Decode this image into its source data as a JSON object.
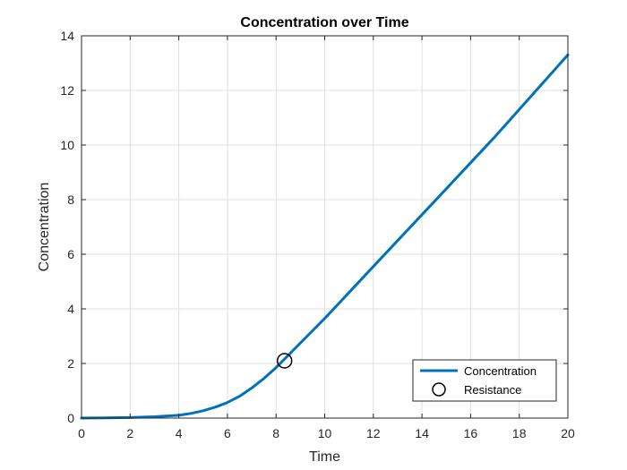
{
  "chart_data": {
    "type": "line",
    "title": "Concentration over Time",
    "xlabel": "Time",
    "ylabel": "Concentration",
    "xlim": [
      0,
      20
    ],
    "ylim": [
      0,
      14
    ],
    "xticks": [
      0,
      2,
      4,
      6,
      8,
      10,
      12,
      14,
      16,
      18,
      20
    ],
    "yticks": [
      0,
      2,
      4,
      6,
      8,
      10,
      12,
      14
    ],
    "grid": true,
    "legend_position": "bottom-right",
    "series": [
      {
        "name": "Concentration",
        "kind": "line",
        "color": "#0072BD",
        "x": [
          0,
          1,
          2,
          3,
          4,
          4.5,
          5,
          5.5,
          6,
          6.5,
          7,
          7.5,
          8,
          8.5,
          9,
          9.5,
          10,
          11,
          12,
          13,
          14,
          15,
          16,
          17,
          18,
          19,
          20
        ],
        "y": [
          0,
          0.01,
          0.02,
          0.05,
          0.1,
          0.17,
          0.27,
          0.4,
          0.57,
          0.8,
          1.1,
          1.45,
          1.85,
          2.3,
          2.75,
          3.2,
          3.65,
          4.6,
          5.55,
          6.5,
          7.45,
          8.4,
          9.35,
          10.3,
          11.3,
          12.3,
          13.3
        ]
      },
      {
        "name": "Resistance",
        "kind": "marker",
        "marker": "circle",
        "color": "#000000",
        "x": [
          8.35
        ],
        "y": [
          2.1
        ]
      }
    ]
  }
}
